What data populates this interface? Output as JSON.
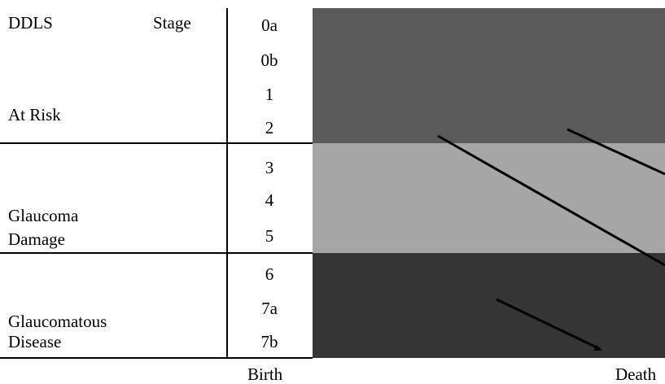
{
  "header": {
    "col1": "DDLS",
    "col2": "Stage"
  },
  "groups": [
    {
      "label_lines": [
        "At Risk"
      ],
      "stages": [
        "0a",
        "0b",
        "1",
        "2"
      ],
      "color": "#5a5a5a"
    },
    {
      "label_lines": [
        "Glaucoma",
        "Damage"
      ],
      "stages": [
        "3",
        "4",
        "5"
      ],
      "color": "#a6a6a6"
    },
    {
      "label_lines": [
        "Glaucomatous",
        "Disease"
      ],
      "stages": [
        "6",
        "7a",
        "7b"
      ],
      "color": "#353535"
    }
  ],
  "timeline": {
    "start_label": "Birth",
    "end_label": "Death"
  }
}
